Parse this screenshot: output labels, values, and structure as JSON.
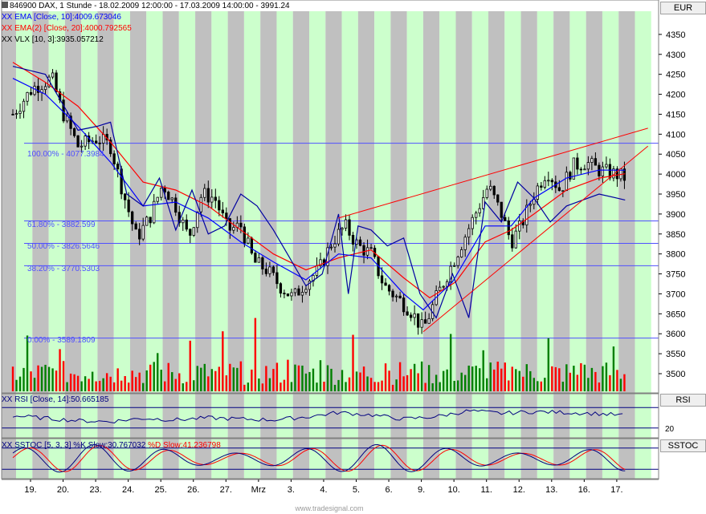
{
  "header": {
    "line1": "846900  DAX, 1 Stunde - 18.02.2009 12:00:00 - 17.03.2009 14:00:00 - 3991.24",
    "line2_prefix": "XX",
    "line2_text": "EMA [Close, 10]:4009.673046",
    "line3_prefix": "XX",
    "line3_text": "EMA(2) [Close, 20]:4000.792565",
    "line4_prefix": "XX",
    "line4_text": "VLX [10, 3]:3935.057212"
  },
  "panels": {
    "price_tab": "EUR",
    "rsi_tab": "RSI",
    "sstoc_tab": "SSTOC",
    "rsi_label_prefix": "XX",
    "rsi_label": "RSI [Close, 14]:50.665185",
    "rsi_level": "20",
    "sstoc_label_prefix": "XX",
    "sstoc_label_k": "SSTOC [5, 3, 3] %K Slow:30.767032",
    "sstoc_label_d": "%D Slow:41.236798"
  },
  "fib_labels": [
    {
      "text": "100.00% - 4077.3984",
      "value": 4077.3984
    },
    {
      "text": "61.80% - 3882.599",
      "value": 3882.599
    },
    {
      "text": "50.00% - 3826.5646",
      "value": 3826.5646
    },
    {
      "text": "38.20% - 3770.5303",
      "value": 3770.5303
    },
    {
      "text": "0.00% - 3589.1809",
      "value": 3589.1809
    }
  ],
  "credit": "www.tradesignal.com",
  "colors": {
    "background": "#ffffff",
    "shade_gray": "#c0c0c0",
    "shade_green": "#ccffcc",
    "ema10": "#0000ff",
    "ema20": "#ff0000",
    "vlx": "#0000a0",
    "fib": "#5050ff",
    "trend": "#ff0000",
    "candle": "#000000",
    "volume_up": "#008000",
    "volume_down": "#ff0000",
    "rsi": "#000080",
    "sstoc_k": "#000080",
    "sstoc_d": "#ff0000"
  },
  "chart_data": {
    "type": "candlestick",
    "y_axis": {
      "min": 3480,
      "max": 4400,
      "ticks": [
        3500,
        3550,
        3600,
        3650,
        3700,
        3750,
        3800,
        3850,
        3900,
        3950,
        4000,
        4050,
        4100,
        4150,
        4200,
        4250,
        4300,
        4350
      ]
    },
    "x_tick_labels": [
      "19.",
      "20.",
      "23.",
      "24.",
      "25.",
      "26.",
      "27.",
      "Mrz",
      "3.",
      "4.",
      "5.",
      "6.",
      "9.",
      "10.",
      "11.",
      "12.",
      "13.",
      "16.",
      "17."
    ],
    "trend_lines": [
      {
        "from": {
          "day": 10,
          "price": 3890
        },
        "to": {
          "day": 19.5,
          "price": 4115
        }
      },
      {
        "from": {
          "day": 12.6,
          "price": 3605
        },
        "to": {
          "day": 19.5,
          "price": 4070
        }
      }
    ],
    "close_path": [
      {
        "day": 0.0,
        "close": 4150
      },
      {
        "day": 0.6,
        "close": 4215
      },
      {
        "day": 1.2,
        "close": 4240
      },
      {
        "day": 1.5,
        "close": 4160
      },
      {
        "day": 2.0,
        "close": 4070
      },
      {
        "day": 2.6,
        "close": 4090
      },
      {
        "day": 3.0,
        "close": 4070
      },
      {
        "day": 3.4,
        "close": 3950
      },
      {
        "day": 3.8,
        "close": 3840
      },
      {
        "day": 4.2,
        "close": 3890
      },
      {
        "day": 4.6,
        "close": 3975
      },
      {
        "day": 5.0,
        "close": 3920
      },
      {
        "day": 5.4,
        "close": 3840
      },
      {
        "day": 5.8,
        "close": 3950
      },
      {
        "day": 6.2,
        "close": 3940
      },
      {
        "day": 6.6,
        "close": 3860
      },
      {
        "day": 7.0,
        "close": 3870
      },
      {
        "day": 7.4,
        "close": 3780
      },
      {
        "day": 7.8,
        "close": 3760
      },
      {
        "day": 8.2,
        "close": 3720
      },
      {
        "day": 8.6,
        "close": 3690
      },
      {
        "day": 9.0,
        "close": 3730
      },
      {
        "day": 9.4,
        "close": 3760
      },
      {
        "day": 9.8,
        "close": 3830
      },
      {
        "day": 10.2,
        "close": 3870
      },
      {
        "day": 10.6,
        "close": 3820
      },
      {
        "day": 11.0,
        "close": 3800
      },
      {
        "day": 11.4,
        "close": 3720
      },
      {
        "day": 11.8,
        "close": 3690
      },
      {
        "day": 12.2,
        "close": 3660
      },
      {
        "day": 12.6,
        "close": 3610
      },
      {
        "day": 13.0,
        "close": 3690
      },
      {
        "day": 13.4,
        "close": 3760
      },
      {
        "day": 13.8,
        "close": 3830
      },
      {
        "day": 14.2,
        "close": 3900
      },
      {
        "day": 14.6,
        "close": 3970
      },
      {
        "day": 15.0,
        "close": 3900
      },
      {
        "day": 15.3,
        "close": 3830
      },
      {
        "day": 15.6,
        "close": 3870
      },
      {
        "day": 16.0,
        "close": 3950
      },
      {
        "day": 16.4,
        "close": 4010
      },
      {
        "day": 16.8,
        "close": 3960
      },
      {
        "day": 17.2,
        "close": 4020
      },
      {
        "day": 17.6,
        "close": 4030
      },
      {
        "day": 18.0,
        "close": 4010
      },
      {
        "day": 18.5,
        "close": 4000
      },
      {
        "day": 18.8,
        "close": 3991
      }
    ],
    "ema10": [
      {
        "day": 0.0,
        "value": 4240
      },
      {
        "day": 1.0,
        "value": 4200
      },
      {
        "day": 2.0,
        "value": 4120
      },
      {
        "day": 3.0,
        "value": 4030
      },
      {
        "day": 4.0,
        "value": 3920
      },
      {
        "day": 5.0,
        "value": 3930
      },
      {
        "day": 6.0,
        "value": 3890
      },
      {
        "day": 7.0,
        "value": 3830
      },
      {
        "day": 8.0,
        "value": 3780
      },
      {
        "day": 9.0,
        "value": 3735
      },
      {
        "day": 10.0,
        "value": 3800
      },
      {
        "day": 11.0,
        "value": 3790
      },
      {
        "day": 12.0,
        "value": 3700
      },
      {
        "day": 12.6,
        "value": 3660
      },
      {
        "day": 13.5,
        "value": 3730
      },
      {
        "day": 14.5,
        "value": 3870
      },
      {
        "day": 15.3,
        "value": 3870
      },
      {
        "day": 16.0,
        "value": 3940
      },
      {
        "day": 17.0,
        "value": 3990
      },
      {
        "day": 18.0,
        "value": 4010
      },
      {
        "day": 18.8,
        "value": 4009.67
      }
    ],
    "ema20": [
      {
        "day": 0.0,
        "value": 4280
      },
      {
        "day": 1.0,
        "value": 4230
      },
      {
        "day": 2.0,
        "value": 4170
      },
      {
        "day": 3.0,
        "value": 4080
      },
      {
        "day": 4.0,
        "value": 3980
      },
      {
        "day": 5.0,
        "value": 3960
      },
      {
        "day": 6.0,
        "value": 3920
      },
      {
        "day": 7.0,
        "value": 3860
      },
      {
        "day": 8.0,
        "value": 3800
      },
      {
        "day": 9.0,
        "value": 3760
      },
      {
        "day": 10.0,
        "value": 3790
      },
      {
        "day": 11.0,
        "value": 3810
      },
      {
        "day": 12.0,
        "value": 3740
      },
      {
        "day": 12.8,
        "value": 3690
      },
      {
        "day": 13.6,
        "value": 3730
      },
      {
        "day": 14.5,
        "value": 3830
      },
      {
        "day": 15.3,
        "value": 3860
      },
      {
        "day": 16.0,
        "value": 3900
      },
      {
        "day": 17.0,
        "value": 3960
      },
      {
        "day": 18.0,
        "value": 3990
      },
      {
        "day": 18.8,
        "value": 4000.79
      }
    ],
    "vlx": [
      {
        "day": 0.0,
        "value": 4270
      },
      {
        "day": 1.0,
        "value": 4250
      },
      {
        "day": 2.0,
        "value": 4110
      },
      {
        "day": 2.6,
        "value": 4120
      },
      {
        "day": 3.0,
        "value": 4130
      },
      {
        "day": 3.5,
        "value": 3950
      },
      {
        "day": 4.0,
        "value": 3920
      },
      {
        "day": 4.5,
        "value": 3990
      },
      {
        "day": 5.0,
        "value": 3860
      },
      {
        "day": 5.5,
        "value": 3960
      },
      {
        "day": 6.0,
        "value": 3850
      },
      {
        "day": 6.5,
        "value": 3870
      },
      {
        "day": 7.0,
        "value": 3950
      },
      {
        "day": 7.5,
        "value": 3920
      },
      {
        "day": 8.0,
        "value": 3860
      },
      {
        "day": 8.5,
        "value": 3790
      },
      {
        "day": 9.0,
        "value": 3720
      },
      {
        "day": 9.5,
        "value": 3750
      },
      {
        "day": 10.0,
        "value": 3900
      },
      {
        "day": 10.3,
        "value": 3700
      },
      {
        "day": 10.6,
        "value": 3870
      },
      {
        "day": 11.0,
        "value": 3860
      },
      {
        "day": 11.5,
        "value": 3820
      },
      {
        "day": 12.0,
        "value": 3840
      },
      {
        "day": 12.5,
        "value": 3700
      },
      {
        "day": 13.0,
        "value": 3640
      },
      {
        "day": 13.5,
        "value": 3750
      },
      {
        "day": 14.0,
        "value": 3640
      },
      {
        "day": 14.5,
        "value": 3930
      },
      {
        "day": 15.0,
        "value": 3880
      },
      {
        "day": 15.5,
        "value": 3980
      },
      {
        "day": 16.0,
        "value": 3940
      },
      {
        "day": 16.5,
        "value": 3880
      },
      {
        "day": 17.0,
        "value": 3920
      },
      {
        "day": 18.0,
        "value": 3950
      },
      {
        "day": 18.8,
        "value": 3935.06
      }
    ],
    "rsi": {
      "min": 0,
      "max": 100,
      "level_lines": [
        70,
        20
      ],
      "last": 50.665185,
      "values": [
        {
          "day": 0.0,
          "value": 50
        },
        {
          "day": 1.0,
          "value": 44
        },
        {
          "day": 2.0,
          "value": 38
        },
        {
          "day": 3.0,
          "value": 36
        },
        {
          "day": 4.0,
          "value": 44
        },
        {
          "day": 5.0,
          "value": 40
        },
        {
          "day": 6.0,
          "value": 45
        },
        {
          "day": 7.0,
          "value": 42
        },
        {
          "day": 8.0,
          "value": 40
        },
        {
          "day": 9.0,
          "value": 47
        },
        {
          "day": 10.0,
          "value": 58
        },
        {
          "day": 11.0,
          "value": 52
        },
        {
          "day": 12.0,
          "value": 42
        },
        {
          "day": 13.0,
          "value": 48
        },
        {
          "day": 14.0,
          "value": 62
        },
        {
          "day": 15.0,
          "value": 56
        },
        {
          "day": 16.0,
          "value": 60
        },
        {
          "day": 17.0,
          "value": 58
        },
        {
          "day": 18.0,
          "value": 55
        },
        {
          "day": 18.8,
          "value": 50.67
        }
      ]
    },
    "sstoc": {
      "min": 0,
      "max": 100,
      "level_lines": [
        80,
        20
      ],
      "k_last": 30.767032,
      "d_last": 41.236798
    },
    "volume": {
      "max": 100
    }
  }
}
